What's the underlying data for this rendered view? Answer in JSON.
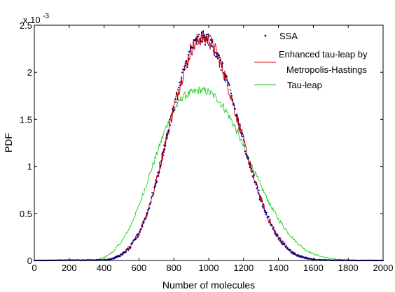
{
  "chart_data": {
    "type": "line",
    "title": "",
    "xlabel": "Number of molecules",
    "ylabel": "PDF",
    "y_exponent_label": "x 10",
    "y_exponent_power": "-3",
    "xlim": [
      0,
      2000
    ],
    "ylim": [
      0,
      0.0025
    ],
    "xticks": [
      0,
      200,
      400,
      600,
      800,
      1000,
      1200,
      1400,
      1600,
      1800,
      2000
    ],
    "xtick_labels": [
      "0",
      "200",
      "400",
      "600",
      "800",
      "1000",
      "1200",
      "1400",
      "1600",
      "1800",
      "2000"
    ],
    "yticks": [
      0,
      0.0005,
      0.001,
      0.0015,
      0.002,
      0.0025
    ],
    "ytick_labels": [
      "0",
      "0.5",
      "1",
      "1.5",
      "2",
      "2.5"
    ],
    "grid": false,
    "legend_position": "top-right",
    "series": [
      {
        "name": "SSA",
        "color": "#00008b",
        "style": "dots",
        "x": [
          0,
          400,
          450,
          500,
          550,
          600,
          650,
          700,
          750,
          800,
          850,
          900,
          950,
          1000,
          1050,
          1100,
          1150,
          1200,
          1250,
          1300,
          1350,
          1400,
          1450,
          1500,
          1550,
          1600,
          1650,
          1700,
          2000
        ],
        "y": [
          0,
          5e-06,
          2e-05,
          6e-05,
          0.00014,
          0.00029,
          0.00052,
          0.00084,
          0.00124,
          0.00163,
          0.00197,
          0.00225,
          0.00237,
          0.00235,
          0.00219,
          0.00193,
          0.00161,
          0.00126,
          0.00093,
          0.00064,
          0.00041,
          0.00024,
          0.00013,
          6e-05,
          3e-05,
          1e-05,
          5e-06,
          2e-06,
          0
        ]
      },
      {
        "name": "Enhanced tau-leap by Metropolis-Hastings",
        "legend_line1": "Enhanced tau-leap by",
        "legend_line2": "Metropolis-Hastings",
        "color": "#cc0000",
        "style": "line",
        "x": [
          0,
          400,
          450,
          500,
          550,
          600,
          650,
          700,
          750,
          800,
          850,
          900,
          950,
          1000,
          1050,
          1100,
          1150,
          1200,
          1250,
          1300,
          1350,
          1400,
          1450,
          1500,
          1550,
          1600,
          1650,
          1700,
          2000
        ],
        "y": [
          0,
          5e-06,
          2e-05,
          6e-05,
          0.00014,
          0.00029,
          0.00052,
          0.00084,
          0.00124,
          0.00163,
          0.00197,
          0.00225,
          0.00237,
          0.00235,
          0.00219,
          0.00193,
          0.00161,
          0.00126,
          0.00093,
          0.00064,
          0.00041,
          0.00024,
          0.00013,
          6e-05,
          3e-05,
          1e-05,
          5e-06,
          2e-06,
          0
        ]
      },
      {
        "name": "Tau-leap",
        "color": "#22cc22",
        "style": "line",
        "x": [
          0,
          350,
          400,
          450,
          500,
          550,
          600,
          650,
          700,
          750,
          800,
          850,
          900,
          950,
          1000,
          1050,
          1100,
          1150,
          1200,
          1250,
          1300,
          1350,
          1400,
          1450,
          1500,
          1550,
          1600,
          1650,
          1700,
          1750,
          1800,
          2000
        ],
        "y": [
          0,
          5e-06,
          3e-05,
          9e-05,
          0.0002,
          0.00036,
          0.00058,
          0.00085,
          0.00112,
          0.00139,
          0.0016,
          0.00174,
          0.00178,
          0.00181,
          0.00179,
          0.00172,
          0.00159,
          0.00142,
          0.00121,
          0.00099,
          0.00079,
          0.0006,
          0.00044,
          0.00031,
          0.0002,
          0.00012,
          7e-05,
          4e-05,
          2e-05,
          1e-05,
          5e-06,
          0
        ]
      }
    ]
  }
}
